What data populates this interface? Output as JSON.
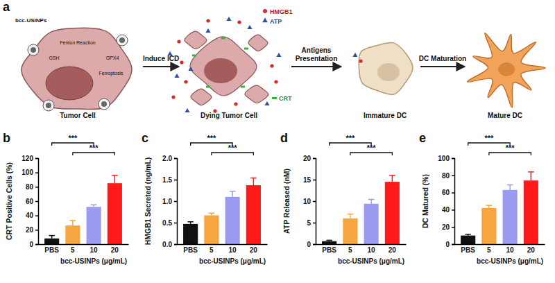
{
  "diagram": {
    "panel": "a",
    "stages": [
      "Tumor Cell",
      "Dying Tumor Cell",
      "Immature DC",
      "Mature DC"
    ],
    "steps": [
      "Induce ICD",
      "Antigens Presentation",
      "DC Maturation"
    ],
    "markers": [
      "HMGB1",
      "ATP",
      "CRT"
    ],
    "particle": "bcc-USINPs",
    "cell_labels": [
      "Fenton Reaction",
      "GSH",
      "GPX4",
      "Ferroptosis"
    ]
  },
  "chart_data": [
    {
      "type": "bar",
      "panel": "b",
      "y_label": "CRT Positive Cells (%)",
      "x_label": "bcc-USINPs (μg/mL)",
      "categories": [
        "PBS",
        "5",
        "10",
        "20"
      ],
      "values": [
        8,
        26,
        52,
        85
      ],
      "errors": [
        4,
        7,
        3,
        11
      ],
      "colors": [
        "#111111",
        "#f7a541",
        "#9b9bf2",
        "#ff1a1a"
      ],
      "ylim": [
        0,
        120
      ],
      "yticks": [
        0,
        20,
        40,
        60,
        80,
        100,
        120
      ],
      "annotations": [
        {
          "text": "***",
          "categories": [
            "PBS",
            "10"
          ]
        },
        {
          "text": "***",
          "categories": [
            "5",
            "20"
          ]
        }
      ]
    },
    {
      "type": "bar",
      "panel": "c",
      "y_label": "HMGB1 Secreted (ng/mL)",
      "x_label": "bcc-USINPs (μg/mL)",
      "categories": [
        "PBS",
        "5",
        "10",
        "20"
      ],
      "values": [
        0.47,
        0.67,
        1.1,
        1.37
      ],
      "errors": [
        0.05,
        0.05,
        0.13,
        0.17
      ],
      "colors": [
        "#111111",
        "#f7a541",
        "#9b9bf2",
        "#ff1a1a"
      ],
      "ylim": [
        0,
        2
      ],
      "yticks": [
        {
          "value": 0,
          "label": "0.0"
        },
        0.5,
        {
          "value": 1,
          "label": "1.0"
        },
        1.5,
        {
          "value": 2,
          "label": "2.0"
        }
      ],
      "annotations": [
        {
          "text": "***",
          "categories": [
            "PBS",
            "10"
          ]
        },
        {
          "text": "***",
          "categories": [
            "5",
            "20"
          ]
        }
      ]
    },
    {
      "type": "bar",
      "panel": "d",
      "y_label": "ATP Released (nM)",
      "x_label": "bcc-USINPs (μg/mL)",
      "categories": [
        "PBS",
        "5",
        "10",
        "20"
      ],
      "values": [
        0.7,
        6,
        9.4,
        14.5
      ],
      "errors": [
        0.2,
        1,
        1,
        1.5
      ],
      "colors": [
        "#111111",
        "#f7a541",
        "#9b9bf2",
        "#ff1a1a"
      ],
      "ylim": [
        0,
        20
      ],
      "yticks": [
        0,
        5,
        10,
        15,
        20
      ],
      "annotations": [
        {
          "text": "***",
          "categories": [
            "PBS",
            "10"
          ]
        },
        {
          "text": "***",
          "categories": [
            "5",
            "20"
          ]
        }
      ]
    },
    {
      "type": "bar",
      "panel": "e",
      "y_label": "DC Matured (%)",
      "x_label": "bcc-USINPs (μg/mL)",
      "categories": [
        "PBS",
        "5",
        "10",
        "20"
      ],
      "values": [
        10,
        42,
        63,
        74
      ],
      "errors": [
        1.5,
        3,
        6,
        10
      ],
      "colors": [
        "#111111",
        "#f7a541",
        "#9b9bf2",
        "#ff1a1a"
      ],
      "ylim": [
        0,
        100
      ],
      "yticks": [
        0,
        20,
        40,
        60,
        80,
        100
      ],
      "annotations": [
        {
          "text": "***",
          "categories": [
            "PBS",
            "10"
          ]
        },
        {
          "text": "***",
          "categories": [
            "5",
            "20"
          ]
        }
      ]
    }
  ]
}
